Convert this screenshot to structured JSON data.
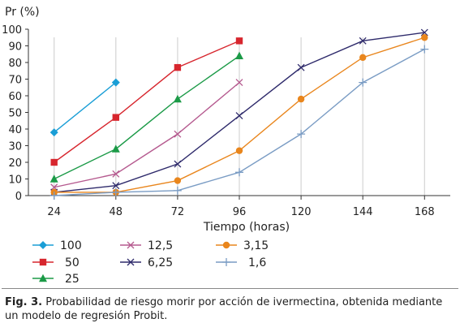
{
  "chart_data": {
    "type": "line",
    "ylabel": "Pr (%)",
    "xlabel": "Tiempo (horas)",
    "x_ticks": [
      24,
      48,
      72,
      96,
      120,
      144,
      168
    ],
    "y_ticks": [
      0,
      10,
      20,
      30,
      40,
      50,
      60,
      70,
      80,
      90,
      100
    ],
    "xlim": [
      14,
      178
    ],
    "ylim": [
      0,
      100
    ],
    "grid": "vertical",
    "legend_position": "bottom-left",
    "series": [
      {
        "name": "100",
        "color": "#1a9ed6",
        "marker": "diamond",
        "x": [
          24,
          48
        ],
        "y": [
          38,
          68
        ]
      },
      {
        "name": "50",
        "color": "#d7262e",
        "marker": "square",
        "x": [
          24,
          48,
          72,
          96
        ],
        "y": [
          20,
          47,
          77,
          93
        ]
      },
      {
        "name": "25",
        "color": "#1b9a47",
        "marker": "triangle",
        "x": [
          24,
          48,
          72,
          96
        ],
        "y": [
          10,
          28,
          58,
          84
        ]
      },
      {
        "name": "12,5",
        "color": "#b55a8f",
        "marker": "x",
        "x": [
          24,
          48,
          72,
          96
        ],
        "y": [
          5,
          13,
          37,
          68
        ]
      },
      {
        "name": "6,25",
        "color": "#2e2a6b",
        "marker": "x",
        "x": [
          24,
          48,
          72,
          96,
          120,
          144,
          168
        ],
        "y": [
          2,
          6,
          19,
          48,
          77,
          93,
          98
        ]
      },
      {
        "name": "3,15",
        "color": "#e9861d",
        "marker": "circle",
        "x": [
          24,
          48,
          72,
          96,
          120,
          144,
          168
        ],
        "y": [
          2,
          2,
          9,
          27,
          58,
          83,
          95
        ]
      },
      {
        "name": "1,6",
        "color": "#7a9cc4",
        "marker": "plus",
        "x": [
          24,
          48,
          72,
          96,
          120,
          144,
          168
        ],
        "y": [
          0,
          2,
          3,
          14,
          37,
          68,
          88
        ]
      }
    ]
  },
  "caption": {
    "label": "Fig. 3.",
    "text": " Probabilidad de riesgo morir por acción de ivermectina, obtenida mediante un modelo de regresión Probit."
  }
}
